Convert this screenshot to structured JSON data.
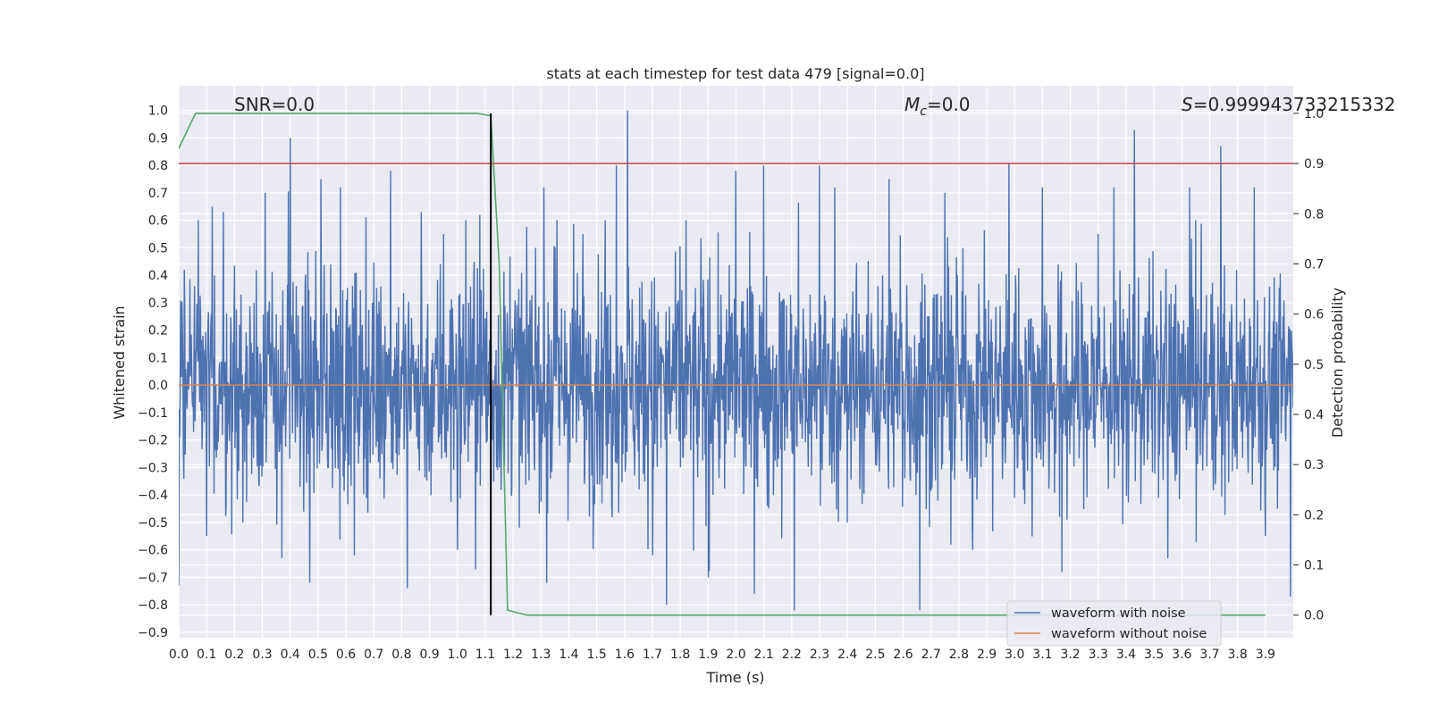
{
  "chart_data": {
    "type": "line",
    "title": "stats at each timestep for test data 479 [signal=0.0]",
    "xlabel": "Time (s)",
    "ylabel": "Whitened strain",
    "y2label": "Detection probability",
    "xlim": [
      0.0,
      4.0
    ],
    "ylim": [
      -0.92,
      1.09
    ],
    "y2lim": [
      -0.045,
      1.055
    ],
    "x_ticks": [
      "0.0",
      "0.1",
      "0.2",
      "0.3",
      "0.4",
      "0.5",
      "0.6",
      "0.7",
      "0.8",
      "0.9",
      "1.0",
      "1.1",
      "1.2",
      "1.3",
      "1.4",
      "1.5",
      "1.6",
      "1.7",
      "1.8",
      "1.9",
      "2.0",
      "2.1",
      "2.2",
      "2.3",
      "2.4",
      "2.5",
      "2.6",
      "2.7",
      "2.8",
      "2.9",
      "3.0",
      "3.1",
      "3.2",
      "3.3",
      "3.4",
      "3.5",
      "3.6",
      "3.7",
      "3.8",
      "3.9"
    ],
    "y_ticks": [
      "1.0",
      "0.9",
      "0.8",
      "0.7",
      "0.6",
      "0.5",
      "0.4",
      "0.3",
      "0.2",
      "0.1",
      "0.0",
      "−0.1",
      "−0.2",
      "−0.3",
      "−0.4",
      "−0.5",
      "−0.6",
      "−0.7",
      "−0.8",
      "−0.9"
    ],
    "y2_ticks": [
      "1.0",
      "0.9",
      "0.8",
      "0.7",
      "0.6",
      "0.5",
      "0.4",
      "0.3",
      "0.2",
      "0.1",
      "0.0"
    ],
    "grid": true,
    "annotations": {
      "snr": "SNR=0.0",
      "mc_symbol": "M",
      "mc_sub": "c",
      "mc_value": "=0.0",
      "s_symbol": "S",
      "s_value": "=0.999943733215332"
    },
    "series": [
      {
        "name": "waveform with noise",
        "color": "#4c72b0",
        "axis": "left",
        "description": "dense noise, roughly within -0.8 to 1.0"
      },
      {
        "name": "waveform without noise",
        "color": "#dd8452",
        "axis": "left",
        "x": [
          0.0,
          4.0
        ],
        "y": [
          0.0,
          0.0
        ]
      },
      {
        "name": "detection probability",
        "color": "#55a868",
        "axis": "right",
        "x": [
          0.0,
          0.06,
          0.1,
          0.3,
          0.6,
          1.0,
          1.07,
          1.12,
          1.15,
          1.18,
          1.25,
          1.5,
          2.0,
          3.0,
          3.9
        ],
        "y": [
          0.93,
          1.0,
          1.0,
          1.0,
          1.0,
          1.0,
          1.0,
          0.995,
          0.7,
          0.01,
          0.0,
          0.0,
          0.0,
          0.0,
          0.0
        ]
      },
      {
        "name": "threshold",
        "color": "#c44e52",
        "axis": "right",
        "x": [
          0.0,
          4.0
        ],
        "y": [
          0.9,
          0.9
        ]
      },
      {
        "name": "detection time",
        "color": "#000000",
        "axis": "right",
        "x": [
          1.12,
          1.12
        ],
        "y": [
          0.0,
          1.0
        ]
      }
    ],
    "noise_peaks": [
      {
        "x": 0.0,
        "y": -0.73
      },
      {
        "x": 0.02,
        "y": 0.42
      },
      {
        "x": 0.07,
        "y": 0.6
      },
      {
        "x": 0.1,
        "y": -0.55
      },
      {
        "x": 0.12,
        "y": 0.65
      },
      {
        "x": 0.16,
        "y": 0.63
      },
      {
        "x": 0.23,
        "y": -0.5
      },
      {
        "x": 0.31,
        "y": 0.7
      },
      {
        "x": 0.37,
        "y": -0.63
      },
      {
        "x": 0.4,
        "y": 0.9
      },
      {
        "x": 0.47,
        "y": -0.72
      },
      {
        "x": 0.51,
        "y": 0.75
      },
      {
        "x": 0.58,
        "y": 0.72
      },
      {
        "x": 0.63,
        "y": -0.62
      },
      {
        "x": 0.76,
        "y": 0.78
      },
      {
        "x": 0.82,
        "y": -0.74
      },
      {
        "x": 0.87,
        "y": 0.63
      },
      {
        "x": 0.95,
        "y": 0.55
      },
      {
        "x": 1.0,
        "y": -0.6
      },
      {
        "x": 1.03,
        "y": 0.6
      },
      {
        "x": 1.08,
        "y": 0.62
      },
      {
        "x": 1.28,
        "y": 0.5
      },
      {
        "x": 1.32,
        "y": -0.72
      },
      {
        "x": 1.45,
        "y": 0.55
      },
      {
        "x": 1.53,
        "y": 0.6
      },
      {
        "x": 1.57,
        "y": 0.8
      },
      {
        "x": 1.61,
        "y": 1.0
      },
      {
        "x": 1.7,
        "y": -0.62
      },
      {
        "x": 1.75,
        "y": -0.8
      },
      {
        "x": 1.82,
        "y": 0.6
      },
      {
        "x": 1.9,
        "y": -0.7
      },
      {
        "x": 2.0,
        "y": 0.78
      },
      {
        "x": 2.1,
        "y": 0.8
      },
      {
        "x": 2.21,
        "y": -0.82
      },
      {
        "x": 2.3,
        "y": 0.8
      },
      {
        "x": 2.4,
        "y": -0.5
      },
      {
        "x": 2.55,
        "y": 0.75
      },
      {
        "x": 2.66,
        "y": -0.82
      },
      {
        "x": 2.75,
        "y": 0.7
      },
      {
        "x": 2.85,
        "y": -0.6
      },
      {
        "x": 2.98,
        "y": 0.81
      },
      {
        "x": 3.1,
        "y": 0.72
      },
      {
        "x": 3.17,
        "y": -0.68
      },
      {
        "x": 3.3,
        "y": 0.55
      },
      {
        "x": 3.43,
        "y": 0.93
      },
      {
        "x": 3.55,
        "y": -0.63
      },
      {
        "x": 3.65,
        "y": 0.6
      },
      {
        "x": 3.74,
        "y": 0.87
      },
      {
        "x": 3.86,
        "y": 0.72
      },
      {
        "x": 3.9,
        "y": -0.55
      },
      {
        "x": 3.99,
        "y": -0.77
      }
    ],
    "legend": {
      "position": "lower-right",
      "entries": [
        {
          "label": "waveform with noise",
          "color": "#4c72b0"
        },
        {
          "label": "waveform without noise",
          "color": "#dd8452"
        }
      ]
    }
  }
}
